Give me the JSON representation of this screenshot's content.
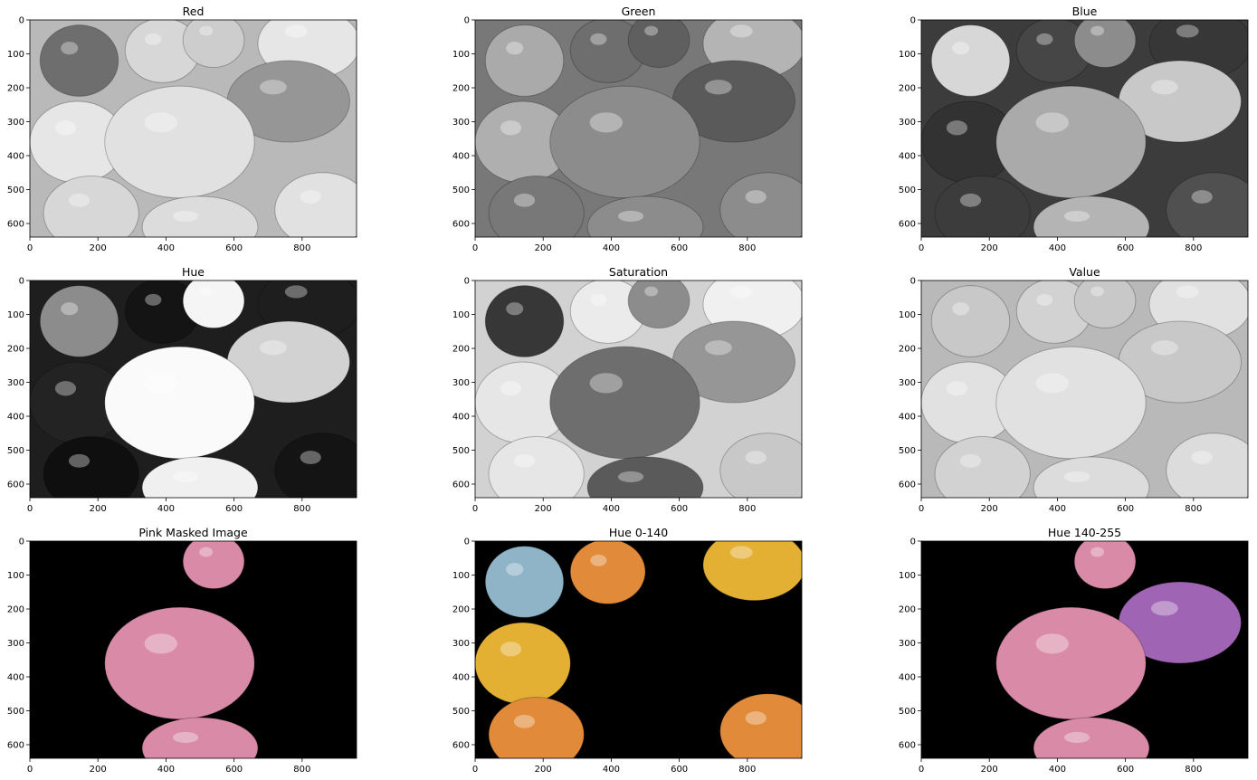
{
  "figure": {
    "panels": [
      {
        "title": "Red",
        "mode": "gray",
        "channel": "red"
      },
      {
        "title": "Green",
        "mode": "gray",
        "channel": "green"
      },
      {
        "title": "Blue",
        "mode": "gray",
        "channel": "blue"
      },
      {
        "title": "Hue",
        "mode": "gray",
        "channel": "hue"
      },
      {
        "title": "Saturation",
        "mode": "gray",
        "channel": "saturation"
      },
      {
        "title": "Value",
        "mode": "gray",
        "channel": "value"
      },
      {
        "title": "Pink Masked Image",
        "mode": "masked",
        "channel": "pink"
      },
      {
        "title": "Hue 0-140",
        "mode": "masked",
        "channel": "hue_low"
      },
      {
        "title": "Hue 140-255",
        "mode": "masked",
        "channel": "hue_high"
      }
    ],
    "axes": {
      "x_ticks": [
        0,
        200,
        400,
        600,
        800
      ],
      "y_ticks": [
        0,
        100,
        200,
        300,
        400,
        500,
        600
      ],
      "x_range": [
        0,
        960
      ],
      "y_range": [
        640,
        0
      ]
    },
    "colors": {
      "pink": "#d98aa6",
      "purple": "#a064b4",
      "light_blue": "#8fb4c8",
      "yellow": "#e3b034",
      "orange": "#e08a3a",
      "black": "#000000"
    }
  }
}
